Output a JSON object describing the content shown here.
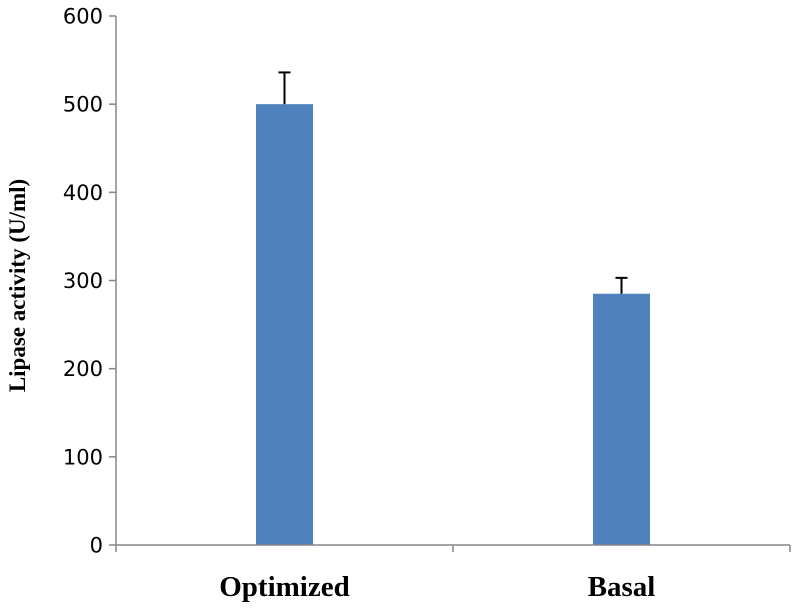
{
  "chart_data": {
    "type": "bar",
    "categories": [
      "Optimized",
      "Basal"
    ],
    "values": [
      500,
      285
    ],
    "errors": [
      36,
      18
    ],
    "ylabel": "Lipase activity (U/ml)",
    "xlabel": "",
    "ylim": [
      0,
      600
    ],
    "yticks": [
      0,
      100,
      200,
      300,
      400,
      500,
      600
    ],
    "grid": false,
    "legend": "none",
    "bar_color": "#4F81BD",
    "axis_color": "#868686",
    "error_bar_color": "#000000"
  }
}
